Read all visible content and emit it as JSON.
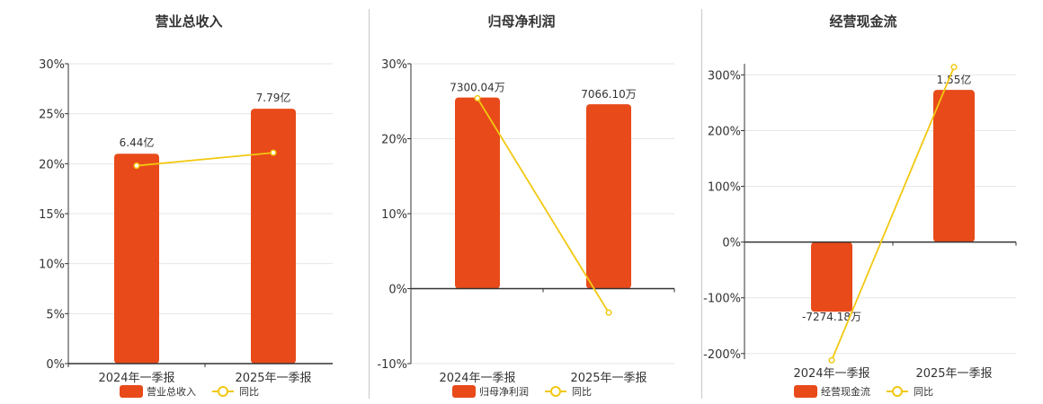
{
  "colors": {
    "bar": "#E84A1A",
    "line": "#F2C811",
    "axis": "#333333",
    "grid": "#e6e6e6",
    "text": "#333333"
  },
  "chart_data": [
    {
      "type": "bar",
      "title": "营业总收入",
      "categories": [
        "2024年一季报",
        "2025年一季报"
      ],
      "series": [
        {
          "name": "营业总收入",
          "type": "bar",
          "labels": [
            "6.44亿",
            "7.79亿"
          ],
          "values": [
            21,
            25.5
          ]
        },
        {
          "name": "同比",
          "type": "line",
          "values": [
            19.8,
            21.1
          ]
        }
      ],
      "ylim": [
        0,
        30
      ],
      "yticks": [
        "0%",
        "5%",
        "10%",
        "15%",
        "20%",
        "25%",
        "30%"
      ],
      "ytick_values": [
        0,
        5,
        10,
        15,
        20,
        25,
        30
      ],
      "grid": true,
      "legend": "bottom"
    },
    {
      "type": "bar",
      "title": "归母净利润",
      "categories": [
        "2024年一季报",
        "2025年一季报"
      ],
      "series": [
        {
          "name": "归母净利润",
          "type": "bar",
          "labels": [
            "7300.04万",
            "7066.10万"
          ],
          "values": [
            25.5,
            24.6
          ]
        },
        {
          "name": "同比",
          "type": "line",
          "values": [
            25.4,
            -3.2
          ]
        }
      ],
      "ylim": [
        -10,
        30
      ],
      "yticks": [
        "-10%",
        "0%",
        "10%",
        "20%",
        "30%"
      ],
      "ytick_values": [
        -10,
        0,
        10,
        20,
        30
      ],
      "grid": true,
      "legend": "bottom"
    },
    {
      "type": "bar",
      "title": "经营现金流",
      "categories": [
        "2024年一季报",
        "2025年一季报"
      ],
      "series": [
        {
          "name": "经营现金流",
          "type": "bar",
          "labels": [
            "-7274.18万",
            "1.55亿"
          ],
          "values": [
            -125,
            273
          ]
        },
        {
          "name": "同比",
          "type": "line",
          "values": [
            -212,
            314
          ]
        }
      ],
      "ylim": [
        -210,
        320
      ],
      "yticks": [
        "-200%",
        "-100%",
        "0%",
        "100%",
        "200%",
        "300%"
      ],
      "ytick_values": [
        -200,
        -100,
        0,
        100,
        200,
        300
      ],
      "grid": true,
      "legend": "bottom"
    }
  ]
}
